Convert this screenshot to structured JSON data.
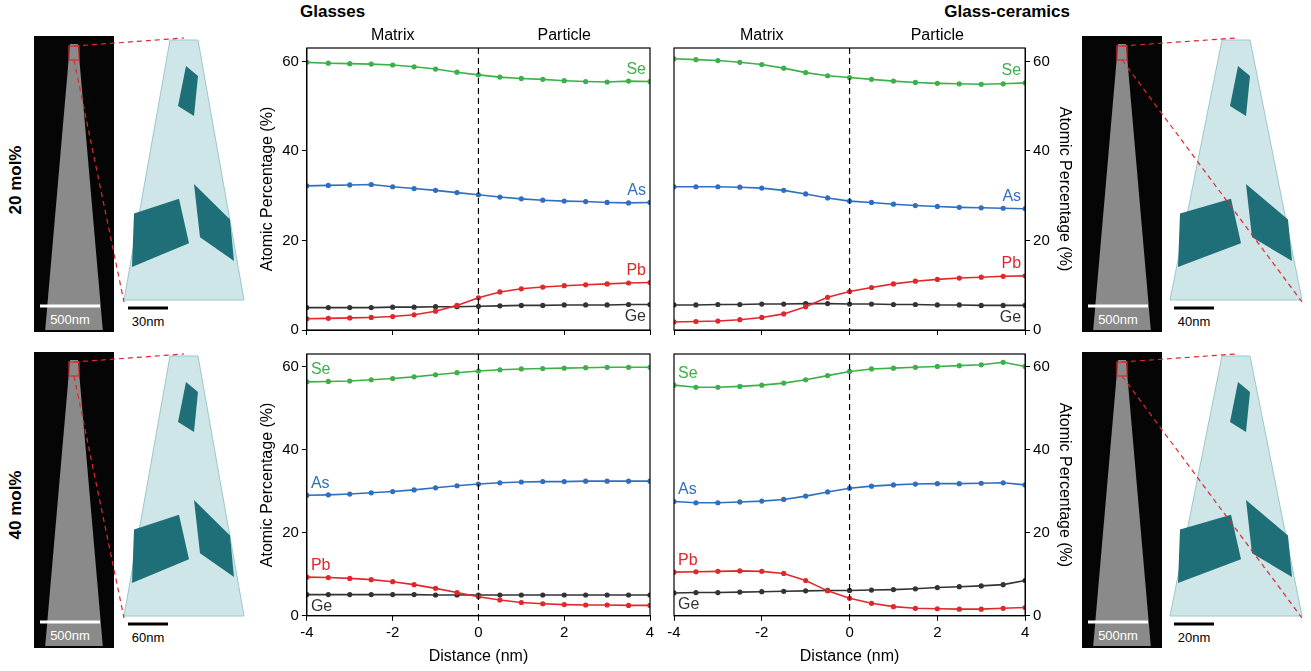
{
  "headers": [
    "Glasses",
    "Glass-ceramics"
  ],
  "row_labels": [
    "20 mol%",
    "40 mol%"
  ],
  "images": [
    [
      "500nm",
      "30nm"
    ],
    [
      "500nm",
      "40nm"
    ],
    [
      "500nm",
      "60nm"
    ],
    [
      "500nm",
      "20nm"
    ]
  ],
  "chart_data": [
    {
      "type": "line",
      "regions": [
        "Matrix",
        "Particle"
      ],
      "boundary_x": 0,
      "y_label": "Atomic Percentage (%)",
      "tick_labels": "y",
      "grid": false,
      "marker": "circle",
      "xlim": [
        -4,
        4
      ],
      "xticks": [
        -4,
        -2,
        0,
        2,
        4
      ],
      "ylim": [
        0,
        63
      ],
      "yticks": [
        0,
        20,
        40,
        60
      ],
      "x": [
        -4,
        -3.5,
        -3,
        -2.5,
        -2,
        -1.5,
        -1,
        -0.5,
        0,
        0.5,
        1,
        1.5,
        2,
        2.5,
        3,
        3.5,
        4
      ],
      "series": [
        {
          "name": "Se",
          "color": "#3cb04a",
          "values": [
            59.8,
            59.6,
            59.5,
            59.4,
            59.2,
            58.8,
            58.3,
            57.6,
            57.0,
            56.5,
            56.2,
            56.0,
            55.7,
            55.5,
            55.4,
            55.6,
            55.5
          ]
        },
        {
          "name": "As",
          "color": "#2f6fc0",
          "values": [
            32.2,
            32.3,
            32.4,
            32.5,
            32.0,
            31.6,
            31.2,
            30.7,
            30.2,
            29.7,
            29.3,
            29.0,
            28.8,
            28.7,
            28.5,
            28.4,
            28.5
          ]
        },
        {
          "name": "Pb",
          "color": "#e0282c",
          "values": [
            2.5,
            2.6,
            2.7,
            2.8,
            3.0,
            3.4,
            4.2,
            5.5,
            7.2,
            8.5,
            9.2,
            9.6,
            9.9,
            10.1,
            10.3,
            10.5,
            10.6
          ]
        },
        {
          "name": "Ge",
          "color": "#333333",
          "values": [
            5.0,
            5.0,
            5.0,
            5.0,
            5.1,
            5.1,
            5.2,
            5.2,
            5.3,
            5.4,
            5.5,
            5.5,
            5.6,
            5.6,
            5.6,
            5.7,
            5.7
          ]
        }
      ]
    },
    {
      "type": "line",
      "regions": [
        "Matrix",
        "Particle"
      ],
      "boundary_x": 0,
      "y_label": "Atomic Percentage (%)",
      "tick_labels": "y",
      "grid": false,
      "marker": "circle",
      "xlim": [
        -4,
        4
      ],
      "xticks": [
        -4,
        -2,
        0,
        2,
        4
      ],
      "ylim": [
        0,
        63
      ],
      "yticks": [
        0,
        20,
        40,
        60
      ],
      "x": [
        -4,
        -3.5,
        -3,
        -2.5,
        -2,
        -1.5,
        -1,
        -0.5,
        0,
        0.5,
        1,
        1.5,
        2,
        2.5,
        3,
        3.5,
        4
      ],
      "series": [
        {
          "name": "Se",
          "color": "#3cb04a",
          "values": [
            60.6,
            60.4,
            60.2,
            59.8,
            59.3,
            58.5,
            57.5,
            56.8,
            56.4,
            56.0,
            55.6,
            55.3,
            55.1,
            55.0,
            54.9,
            55.0,
            55.2
          ]
        },
        {
          "name": "As",
          "color": "#2f6fc0",
          "values": [
            32.0,
            32.0,
            32.0,
            31.9,
            31.7,
            31.2,
            30.4,
            29.5,
            28.8,
            28.5,
            28.1,
            27.8,
            27.6,
            27.4,
            27.3,
            27.2,
            27.1
          ]
        },
        {
          "name": "Pb",
          "color": "#e0282c",
          "values": [
            1.8,
            1.9,
            2.0,
            2.3,
            2.8,
            3.6,
            5.2,
            7.3,
            8.6,
            9.5,
            10.3,
            10.9,
            11.3,
            11.6,
            11.8,
            12.0,
            12.1
          ]
        },
        {
          "name": "Ge",
          "color": "#333333",
          "values": [
            5.6,
            5.6,
            5.7,
            5.7,
            5.8,
            5.8,
            5.9,
            5.9,
            5.8,
            5.8,
            5.7,
            5.7,
            5.6,
            5.6,
            5.5,
            5.5,
            5.5
          ]
        }
      ]
    },
    {
      "type": "line",
      "boundary_x": 0,
      "x_label": "Distance (nm)",
      "y_label": "Atomic Percentage (%)",
      "tick_labels": true,
      "grid": false,
      "marker": "circle",
      "xlim": [
        -4,
        4
      ],
      "xticks": [
        -4,
        -2,
        0,
        2,
        4
      ],
      "ylim": [
        0,
        63
      ],
      "yticks": [
        0,
        20,
        40,
        60
      ],
      "x": [
        -4,
        -3.5,
        -3,
        -2.5,
        -2,
        -1.5,
        -1,
        -0.5,
        0,
        0.5,
        1,
        1.5,
        2,
        2.5,
        3,
        3.5,
        4
      ],
      "series": [
        {
          "name": "Se",
          "color": "#3cb04a",
          "values": [
            56.3,
            56.4,
            56.5,
            56.8,
            57.1,
            57.5,
            58.0,
            58.5,
            58.9,
            59.2,
            59.4,
            59.5,
            59.6,
            59.7,
            59.8,
            59.8,
            59.8
          ]
        },
        {
          "name": "As",
          "color": "#2f6fc0",
          "values": [
            29.0,
            29.1,
            29.3,
            29.6,
            29.9,
            30.3,
            30.8,
            31.3,
            31.7,
            32.0,
            32.2,
            32.3,
            32.3,
            32.4,
            32.4,
            32.4,
            32.4
          ]
        },
        {
          "name": "Pb",
          "color": "#e0282c",
          "values": [
            9.3,
            9.2,
            9.0,
            8.7,
            8.2,
            7.5,
            6.6,
            5.6,
            4.6,
            3.8,
            3.2,
            2.9,
            2.7,
            2.6,
            2.6,
            2.5,
            2.5
          ]
        },
        {
          "name": "Ge",
          "color": "#333333",
          "values": [
            5.1,
            5.1,
            5.1,
            5.1,
            5.1,
            5.1,
            5.0,
            5.0,
            5.0,
            5.0,
            5.0,
            5.0,
            5.0,
            5.0,
            5.0,
            5.0,
            5.0
          ]
        }
      ]
    },
    {
      "type": "line",
      "boundary_x": 0,
      "x_label": "Distance (nm)",
      "y_label": "Atomic Percentage (%)",
      "tick_labels": true,
      "grid": false,
      "marker": "circle",
      "xlim": [
        -4,
        4
      ],
      "xticks": [
        -4,
        -2,
        0,
        2,
        4
      ],
      "ylim": [
        0,
        63
      ],
      "yticks": [
        0,
        20,
        40,
        60
      ],
      "x": [
        -4,
        -3.5,
        -3,
        -2.5,
        -2,
        -1.5,
        -1,
        -0.5,
        0,
        0.5,
        1,
        1.5,
        2,
        2.5,
        3,
        3.5,
        4
      ],
      "series": [
        {
          "name": "Se",
          "color": "#3cb04a",
          "values": [
            55.5,
            55.0,
            55.0,
            55.2,
            55.5,
            56.0,
            56.8,
            57.8,
            58.8,
            59.4,
            59.6,
            59.8,
            60.0,
            60.2,
            60.4,
            61.0,
            60.0
          ]
        },
        {
          "name": "As",
          "color": "#2f6fc0",
          "values": [
            27.5,
            27.2,
            27.2,
            27.4,
            27.6,
            28.0,
            28.8,
            29.8,
            30.7,
            31.2,
            31.5,
            31.7,
            31.8,
            31.8,
            31.9,
            32.0,
            31.5
          ]
        },
        {
          "name": "Pb",
          "color": "#e0282c",
          "values": [
            10.5,
            10.6,
            10.7,
            10.8,
            10.7,
            10.2,
            8.5,
            6.0,
            4.2,
            3.0,
            2.2,
            1.8,
            1.7,
            1.6,
            1.6,
            1.8,
            2.0
          ]
        },
        {
          "name": "Ge",
          "color": "#333333",
          "values": [
            5.5,
            5.6,
            5.6,
            5.7,
            5.8,
            5.9,
            6.0,
            6.1,
            6.1,
            6.2,
            6.3,
            6.5,
            6.8,
            7.0,
            7.2,
            7.5,
            8.5
          ]
        }
      ]
    }
  ]
}
